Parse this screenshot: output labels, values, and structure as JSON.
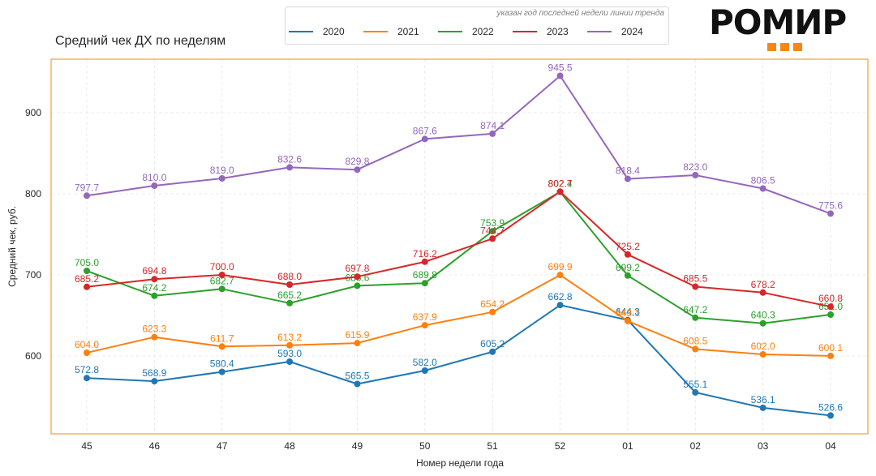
{
  "header": {
    "title": "Средний чек ДХ по неделям",
    "legend_note": "указан год последней недели линии тренда"
  },
  "logo": {
    "text": "РОМИР",
    "accent_color": "#f7870f"
  },
  "chart_data": {
    "type": "line",
    "title": "Средний чек ДХ по неделям",
    "xlabel": "Номер недели года",
    "ylabel": "Средний чек, руб.",
    "categories": [
      "45",
      "46",
      "47",
      "48",
      "49",
      "50",
      "51",
      "52",
      "01",
      "02",
      "03",
      "04"
    ],
    "ylim": [
      504,
      966
    ],
    "yticks": [
      600,
      700,
      800,
      900
    ],
    "grid": true,
    "legend_position": "top-center",
    "frame_color": "#f7870f",
    "series": [
      {
        "name": "2020",
        "color": "#1f77b4",
        "values": [
          572.8,
          568.9,
          580.4,
          593.0,
          565.5,
          582.0,
          605.2,
          662.8,
          644.3,
          555.1,
          536.1,
          526.6
        ]
      },
      {
        "name": "2021",
        "color": "#ff7f0e",
        "values": [
          604.0,
          623.3,
          611.7,
          613.2,
          615.9,
          637.9,
          654.2,
          699.9,
          643.1,
          608.5,
          602.0,
          600.1
        ]
      },
      {
        "name": "2022",
        "color": "#2ca02c",
        "values": [
          705.0,
          674.2,
          682.7,
          665.2,
          686.6,
          689.8,
          753.9,
          802.4,
          699.2,
          647.2,
          640.3,
          651.0
        ]
      },
      {
        "name": "2023",
        "color": "#d62728",
        "values": [
          685.2,
          694.8,
          700.0,
          688.0,
          697.8,
          716.2,
          744.7,
          802.7,
          725.2,
          685.5,
          678.2,
          660.8
        ]
      },
      {
        "name": "2024",
        "color": "#9467bd",
        "values": [
          797.7,
          810.0,
          819.0,
          832.6,
          829.8,
          867.6,
          874.1,
          945.5,
          818.4,
          823.0,
          806.5,
          775.6
        ]
      }
    ]
  }
}
